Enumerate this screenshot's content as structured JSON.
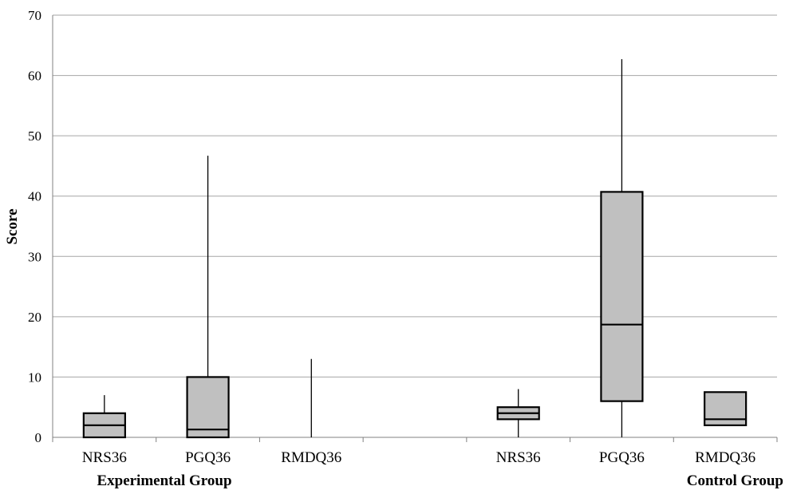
{
  "chart_data": {
    "type": "box",
    "ylabel": "Score",
    "ylim": [
      0,
      70
    ],
    "yticks": [
      0,
      10,
      20,
      30,
      40,
      50,
      60,
      70
    ],
    "grid": true,
    "groups": [
      {
        "label": "Experimental Group",
        "categories": [
          "NRS36",
          "PGQ36",
          "RMDQ36"
        ]
      },
      {
        "label": "Control Group",
        "categories": [
          "NRS36",
          "PGQ36",
          "RMDQ36"
        ]
      }
    ],
    "boxes": [
      {
        "group": 0,
        "category": "NRS36",
        "min": 0,
        "q1": 0,
        "median": 2,
        "q3": 4,
        "max": 7
      },
      {
        "group": 0,
        "category": "PGQ36",
        "min": 0,
        "q1": 0,
        "median": 1.3,
        "q3": 10,
        "max": 46.7
      },
      {
        "group": 0,
        "category": "RMDQ36",
        "min": 0,
        "q1": 0,
        "median": 0,
        "q3": 0,
        "max": 13
      },
      {
        "group": 1,
        "category": "NRS36",
        "min": 0,
        "q1": 3,
        "median": 4,
        "q3": 5,
        "max": 8
      },
      {
        "group": 1,
        "category": "PGQ36",
        "min": 0,
        "q1": 6,
        "median": 18.7,
        "q3": 40.7,
        "max": 62.7
      },
      {
        "group": 1,
        "category": "RMDQ36",
        "min": 2,
        "q1": 2,
        "median": 3,
        "q3": 7.5,
        "max": 7.5
      }
    ],
    "colors": {
      "box_fill": "#c0c0c0",
      "box_stroke": "#000000",
      "grid": "#a6a6a6",
      "axis": "#808080"
    }
  }
}
